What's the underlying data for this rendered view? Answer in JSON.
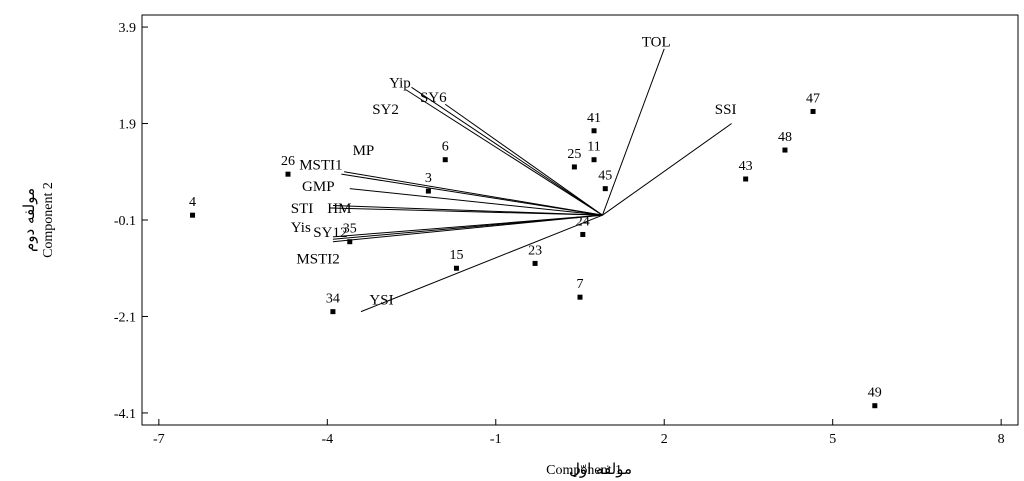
{
  "chart_data": {
    "type": "scatter",
    "subtype": "biplot",
    "title": "",
    "xlabel": "Component 1",
    "xlabel_fa": "مولفه اوّل",
    "ylabel": "Component 2",
    "ylabel_fa": "مولفه دوم",
    "xlim": [
      -7.3,
      8.3
    ],
    "ylim": [
      -4.35,
      4.15
    ],
    "x_ticks": [
      -7,
      -4,
      -1,
      2,
      5,
      8
    ],
    "y_ticks": [
      3.9,
      1.9,
      -0.1,
      -2.1,
      -4.1
    ],
    "x_tick_labels": [
      "-7",
      "-4",
      "-1",
      "2",
      "5",
      "8"
    ],
    "y_tick_labels": [
      "3.9",
      "1.9",
      "-0.1",
      "-2.1",
      "-4.1"
    ],
    "grid": false,
    "vector_origin": [
      0.9,
      0.0
    ],
    "points": [
      {
        "label": "4",
        "x": -6.4,
        "y": 0.0
      },
      {
        "label": "26",
        "x": -4.7,
        "y": 0.85
      },
      {
        "label": "34",
        "x": -3.9,
        "y": -2.0
      },
      {
        "label": "35",
        "x": -3.6,
        "y": -0.55
      },
      {
        "label": "3",
        "x": -2.2,
        "y": 0.5
      },
      {
        "label": "6",
        "x": -1.9,
        "y": 1.15
      },
      {
        "label": "15",
        "x": -1.7,
        "y": -1.1
      },
      {
        "label": "23",
        "x": -0.3,
        "y": -1.0
      },
      {
        "label": "25",
        "x": 0.4,
        "y": 1.0
      },
      {
        "label": "7",
        "x": 0.5,
        "y": -1.7
      },
      {
        "label": "24",
        "x": 0.55,
        "y": -0.4
      },
      {
        "label": "41",
        "x": 0.75,
        "y": 1.75
      },
      {
        "label": "11",
        "x": 0.75,
        "y": 1.15
      },
      {
        "label": "45",
        "x": 0.95,
        "y": 0.55
      },
      {
        "label": "43",
        "x": 3.45,
        "y": 0.75
      },
      {
        "label": "48",
        "x": 4.15,
        "y": 1.35
      },
      {
        "label": "47",
        "x": 4.65,
        "y": 2.15
      },
      {
        "label": "49",
        "x": 5.75,
        "y": -3.95
      }
    ],
    "vectors": [
      {
        "label": "TOL",
        "x": 2.0,
        "y": 3.45
      },
      {
        "label": "SSI",
        "x": 3.2,
        "y": 1.9
      },
      {
        "label": "Yip",
        "x": -2.5,
        "y": 2.65
      },
      {
        "label": "SY2",
        "x": -2.6,
        "y": 2.6
      },
      {
        "label": "SY6",
        "x": -1.9,
        "y": 2.3
      },
      {
        "label": "MP",
        "x": -3.7,
        "y": 0.9
      },
      {
        "label": "MSTI1",
        "x": -3.75,
        "y": 0.85
      },
      {
        "label": "GMP",
        "x": -3.6,
        "y": 0.55
      },
      {
        "label": "STI",
        "x": -3.9,
        "y": 0.2
      },
      {
        "label": "HM",
        "x": -3.95,
        "y": 0.15
      },
      {
        "label": "Yis",
        "x": -3.9,
        "y": -0.45
      },
      {
        "label": "SY12",
        "x": -3.9,
        "y": -0.5
      },
      {
        "label": "MSTI2",
        "x": -3.9,
        "y": -0.55
      },
      {
        "label": "YSI",
        "x": -3.4,
        "y": -2.0
      }
    ],
    "vector_label_positions": {
      "TOL": [
        1.6,
        3.5
      ],
      "SSI": [
        2.9,
        2.1
      ],
      "Yip": [
        -2.9,
        2.65
      ],
      "SY2": [
        -3.2,
        2.1
      ],
      "SY6": [
        -2.35,
        2.35
      ],
      "MP": [
        -3.55,
        1.25
      ],
      "MSTI1": [
        -4.5,
        0.95
      ],
      "GMP": [
        -4.45,
        0.5
      ],
      "STI": [
        -4.65,
        0.05
      ],
      "HM": [
        -4.0,
        0.05
      ],
      "Yis": [
        -4.65,
        -0.35
      ],
      "SY12": [
        -4.25,
        -0.45
      ],
      "MSTI2": [
        -4.55,
        -1.0
      ],
      "YSI": [
        -3.25,
        -1.85
      ]
    }
  }
}
